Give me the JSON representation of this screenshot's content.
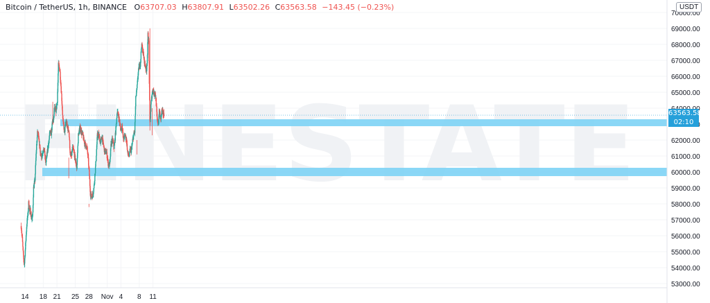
{
  "header": {
    "symbol": "Bitcoin / TetherUS, 1h, BINANCE",
    "open_label": "O",
    "open": "63707.03",
    "high_label": "H",
    "high": "63807.91",
    "low_label": "L",
    "low": "63502.26",
    "close_label": "C",
    "close": "63563.58",
    "change": "−143.45 (−0.23%)"
  },
  "currency_button": "USDT",
  "price_tag": {
    "price": "63563.58",
    "countdown": "02:10"
  },
  "colors": {
    "up": "#26a69a",
    "down": "#ef5350",
    "zone": "#7dd3f5",
    "tag": "#26a0da"
  },
  "chart_data": {
    "type": "candlestick",
    "y_axis_ticks": [
      "53000.00",
      "54000.00",
      "55000.00",
      "56000.00",
      "57000.00",
      "58000.00",
      "59000.00",
      "60000.00",
      "61000.00",
      "62000.00",
      "63000.00",
      "64000.00",
      "65000.00",
      "66000.00",
      "67000.00",
      "68000.00",
      "69000.00",
      "70000.00"
    ],
    "ylim": [
      52700,
      70300
    ],
    "x_axis_ticks": [
      "14",
      "18",
      "21",
      "25",
      "28",
      "Nov",
      "4",
      "8",
      "11"
    ],
    "x_tick_hours": [
      0,
      96,
      168,
      264,
      336,
      432,
      504,
      600,
      672
    ],
    "x_range_hours": [
      -26,
      758
    ],
    "path_hours": [
      -20,
      -14,
      -8,
      -3,
      5,
      10,
      15,
      20,
      24,
      28,
      34,
      40,
      45,
      52,
      60,
      66,
      72,
      80,
      88,
      96,
      102,
      110,
      118,
      124,
      130,
      138,
      146,
      150,
      155,
      160,
      165,
      170,
      176,
      184,
      192,
      200,
      208,
      216,
      224,
      230,
      238,
      244,
      250,
      256,
      264,
      272,
      280,
      290,
      296,
      304,
      310,
      318,
      326,
      332,
      338,
      344,
      350,
      356,
      362,
      372,
      380,
      388,
      396,
      404,
      412,
      418,
      428,
      434,
      438,
      446,
      452,
      460,
      468,
      476,
      484,
      492,
      498,
      504,
      510,
      516,
      524,
      532,
      540,
      548,
      552,
      558,
      564,
      570,
      576,
      582,
      588,
      594,
      600,
      606,
      612,
      620,
      626,
      632,
      638,
      642,
      646,
      650,
      656,
      662,
      668,
      674,
      678,
      682,
      688,
      694,
      700,
      706,
      712,
      718,
      724,
      730
    ],
    "path_prices": [
      56600,
      55800,
      54600,
      54200,
      55800,
      56800,
      57300,
      58200,
      57500,
      57600,
      57100,
      57100,
      59000,
      59400,
      61500,
      62500,
      62300,
      61200,
      61000,
      61400,
      61300,
      60500,
      61400,
      61700,
      62500,
      62400,
      63300,
      63200,
      64100,
      63700,
      64000,
      64500,
      66800,
      66300,
      64800,
      63100,
      62500,
      63200,
      62700,
      62700,
      61000,
      61000,
      61500,
      61300,
      60800,
      60200,
      62300,
      62800,
      62500,
      62300,
      61900,
      61700,
      61500,
      60800,
      59800,
      58600,
      58400,
      58600,
      59000,
      60600,
      62300,
      62300,
      61800,
      62200,
      61700,
      61300,
      61200,
      60800,
      60400,
      60500,
      61800,
      62000,
      61500,
      62500,
      63800,
      63500,
      63000,
      62600,
      63000,
      62000,
      62300,
      62100,
      61100,
      61000,
      61400,
      61300,
      61800,
      62300,
      62500,
      64700,
      65200,
      66200,
      66600,
      66800,
      68000,
      67500,
      67000,
      66600,
      66400,
      67100,
      68800,
      68100,
      62800,
      64300,
      65000,
      65200,
      64800,
      65100,
      64500,
      63200,
      63000,
      63900,
      63200,
      63800,
      63700,
      63560
    ]
  }
}
